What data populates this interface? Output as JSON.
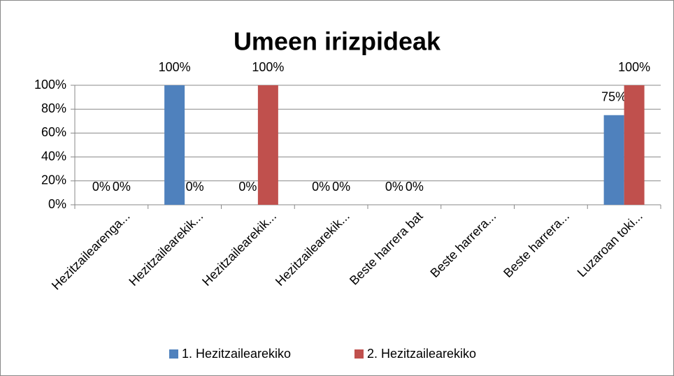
{
  "chart_data": {
    "type": "bar",
    "title": "Umeen irizpideak",
    "categories": [
      "Hezitzailearenga...",
      "Hezitzailearekik...",
      "Hezitzailearekik...",
      "Hezitzailearekik...",
      "Beste harrera bat",
      "Beste harrera...",
      "Beste harrera...",
      "Luzaroan toki..."
    ],
    "series": [
      {
        "name": "1. Hezitzailearekiko",
        "color": "#4f81bd",
        "values": [
          0,
          100,
          0,
          0,
          0,
          null,
          null,
          75
        ],
        "value_labels": [
          "0%",
          "100%",
          "0%",
          "0%",
          "0%",
          null,
          null,
          "75%"
        ]
      },
      {
        "name": "2. Hezitzailearekiko",
        "color": "#c0504d",
        "values": [
          0,
          0,
          100,
          0,
          0,
          null,
          null,
          100
        ],
        "value_labels": [
          "0%",
          "0%",
          "100%",
          "0%",
          "0%",
          null,
          null,
          "100%"
        ]
      }
    ],
    "ylim": [
      0,
      100
    ],
    "yticks": [
      {
        "value": 0,
        "label": "0%"
      },
      {
        "value": 20,
        "label": "20%"
      },
      {
        "value": 40,
        "label": "40%"
      },
      {
        "value": 60,
        "label": "60%"
      },
      {
        "value": 80,
        "label": "80%"
      },
      {
        "value": 100,
        "label": "100%"
      }
    ],
    "grid": true,
    "legend": "bottom"
  }
}
